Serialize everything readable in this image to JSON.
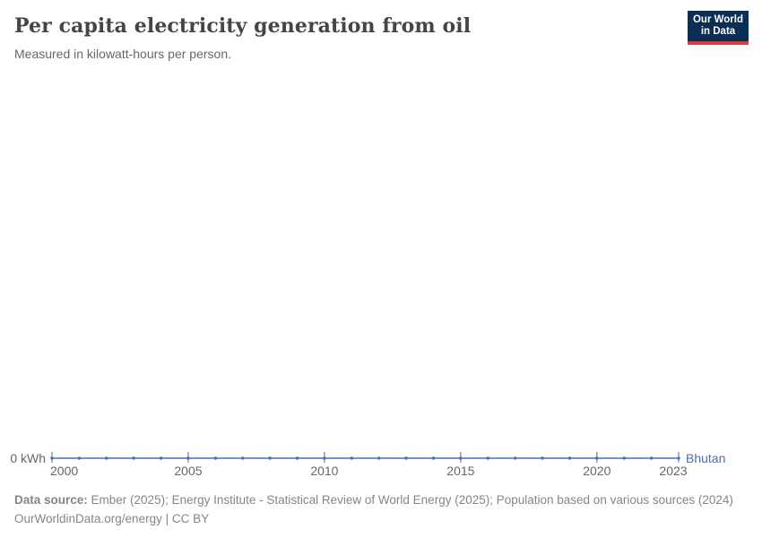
{
  "header": {
    "title": "Per capita electricity generation from oil",
    "subtitle": "Measured in kilowatt-hours per person.",
    "logo": {
      "line1": "Our World",
      "line2": "in Data"
    }
  },
  "colors": {
    "line": "#4470b3",
    "muted_text": "#666666",
    "title_text": "#454545",
    "footer_text": "#858585",
    "logo_bg": "#0d2e54",
    "logo_accent": "#d63e3e",
    "background": "#ffffff"
  },
  "chart_data": {
    "type": "line",
    "title": "Per capita electricity generation from oil",
    "subtitle": "Measured in kilowatt-hours per person.",
    "x": [
      2000,
      2001,
      2002,
      2003,
      2004,
      2005,
      2006,
      2007,
      2008,
      2009,
      2010,
      2011,
      2012,
      2013,
      2014,
      2015,
      2016,
      2017,
      2018,
      2019,
      2020,
      2021,
      2022,
      2023
    ],
    "series": [
      {
        "name": "Bhutan",
        "color": "#4470b3",
        "values": [
          0,
          0,
          0,
          0,
          0,
          0,
          0,
          0,
          0,
          0,
          0,
          0,
          0,
          0,
          0,
          0,
          0,
          0,
          0,
          0,
          0,
          0,
          0,
          0
        ]
      }
    ],
    "x_tick_labels": [
      "2000",
      "2005",
      "2010",
      "2015",
      "2020",
      "2023"
    ],
    "y_tick_labels": [
      "0 kWh"
    ],
    "xlabel": "",
    "ylabel": "",
    "unit": "kWh",
    "xlim": [
      2000,
      2023
    ],
    "ylim": [
      0,
      0
    ],
    "grid": false,
    "legend_position": "end-of-line"
  },
  "footer": {
    "datasource_label": "Data source:",
    "datasource_text": " Ember (2025); Energy Institute - Statistical Review of World Energy (2025); Population based on various sources (2024)",
    "link_line": "OurWorldinData.org/energy | CC BY"
  }
}
